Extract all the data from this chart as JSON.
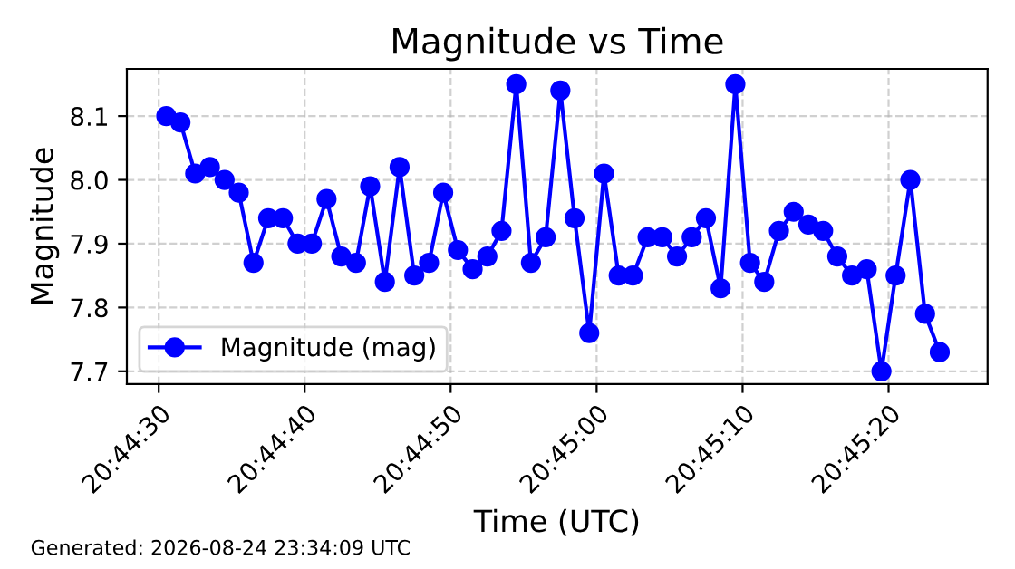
{
  "chart_data": {
    "type": "line",
    "title": "Magnitude vs Time",
    "xlabel": "Time (UTC)",
    "ylabel": "Magnitude",
    "annotations": [
      "Generated: 2026-08-24 23:34:09 UTC"
    ],
    "x": [
      20.74181,
      20.74208,
      20.74236,
      20.74264,
      20.74292,
      20.74319,
      20.74347,
      20.74375,
      20.74403,
      20.74431,
      20.74458,
      20.74486,
      20.74514,
      20.74542,
      20.74569,
      20.74597,
      20.74625,
      20.74653,
      20.74681,
      20.74708,
      20.74736,
      20.74764,
      20.74792,
      20.74819,
      20.74847,
      20.74875,
      20.74903,
      20.74931,
      20.74958,
      20.74986,
      20.75014,
      20.75042,
      20.75069,
      20.75097,
      20.75125,
      20.75153,
      20.75181,
      20.75208,
      20.75236,
      20.75264,
      20.75292,
      20.75319,
      20.75347,
      20.75375,
      20.75403,
      20.75431,
      20.75458,
      20.75486,
      20.75514,
      20.75542,
      20.75569,
      20.75597,
      20.75625,
      20.75653
    ],
    "series": [
      {
        "name": "Magnitude (mag)",
        "color": "#0000ff",
        "values": [
          8.1,
          8.09,
          8.01,
          8.02,
          8.0,
          7.98,
          7.87,
          7.94,
          7.94,
          7.9,
          7.9,
          7.97,
          7.88,
          7.87,
          7.99,
          7.84,
          8.02,
          7.85,
          7.87,
          7.98,
          7.89,
          7.86,
          7.88,
          7.92,
          8.15,
          7.87,
          7.91,
          8.14,
          7.94,
          7.76,
          8.01,
          7.85,
          7.85,
          7.91,
          7.91,
          7.88,
          7.91,
          7.94,
          7.83,
          8.15,
          7.87,
          7.84,
          7.92,
          7.95,
          7.93,
          7.92,
          7.88,
          7.85,
          7.86,
          7.7,
          7.85,
          8.0,
          7.79,
          7.73
        ]
      }
    ],
    "xlim": [
      20.74106,
      20.75744
    ],
    "ylim": [
      7.68,
      8.174
    ],
    "xticks": [
      {
        "value": 20.741667,
        "label": "20:44:30"
      },
      {
        "value": 20.744444,
        "label": "20:44:40"
      },
      {
        "value": 20.747222,
        "label": "20:44:50"
      },
      {
        "value": 20.75,
        "label": "20:45:00"
      },
      {
        "value": 20.752778,
        "label": "20:45:10"
      },
      {
        "value": 20.755556,
        "label": "20:45:20"
      }
    ],
    "yticks": [
      7.7,
      7.8,
      7.9,
      {
        "value": 8,
        "label": "8.0"
      },
      8.1
    ],
    "grid": true,
    "legend": "bottom left",
    "marker": "circle",
    "line_style": "solid"
  }
}
